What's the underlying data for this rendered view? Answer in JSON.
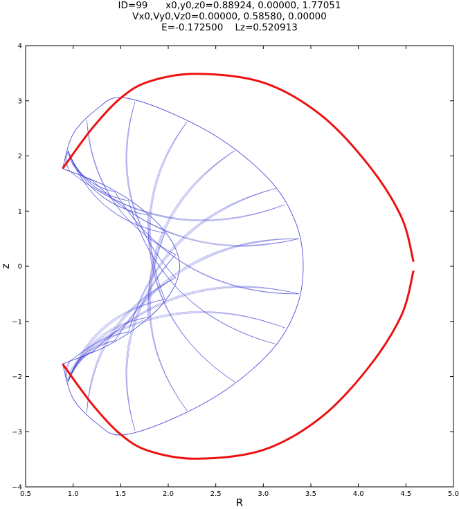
{
  "title_lines": [
    "ID=99      x0,y0,z0=0.88924, 0.00000, 1.77051",
    "Vx0,Vy0,Vz0=0.00000, 0.58580, 0.00000",
    "E=-0.172500    Lz=0.520913"
  ],
  "chart_data": {
    "type": "line",
    "xlabel": "R",
    "ylabel": "z",
    "xlim": [
      0.5,
      5.0
    ],
    "ylim": [
      -4,
      4
    ],
    "xticks": [
      "0.5",
      "1.0",
      "1.5",
      "2.0",
      "2.5",
      "3.0",
      "3.5",
      "4.0",
      "4.5",
      "5.0"
    ],
    "yticks": [
      "−4",
      "−3",
      "−2",
      "−1",
      "0",
      "1",
      "2",
      "3",
      "4"
    ],
    "grid": false,
    "series": [
      {
        "role": "zero-velocity curve",
        "color": "#ee1111",
        "points": [
          [
            0.889,
            1.771
          ],
          [
            1.2,
            2.5
          ],
          [
            1.5,
            3.05
          ],
          [
            1.8,
            3.35
          ],
          [
            2.3,
            3.49
          ],
          [
            3.0,
            3.33
          ],
          [
            3.6,
            2.75
          ],
          [
            4.1,
            1.85
          ],
          [
            4.45,
            0.9
          ],
          [
            4.58,
            0.08
          ],
          [
            4.58,
            -0.08
          ],
          [
            4.45,
            -0.9
          ],
          [
            4.1,
            -1.85
          ],
          [
            3.6,
            -2.75
          ],
          [
            3.0,
            -3.33
          ],
          [
            2.3,
            -3.49
          ],
          [
            1.8,
            -3.35
          ],
          [
            1.5,
            -3.05
          ],
          [
            1.2,
            -2.5
          ],
          [
            0.889,
            -1.771
          ]
        ]
      },
      {
        "role": "orbit trajectory",
        "color": "#3b3bd6",
        "inner_edge": [
          [
            0.889,
            1.771
          ],
          [
            1.35,
            1.45
          ],
          [
            1.75,
            1.0
          ],
          [
            2.02,
            0.5
          ],
          [
            2.12,
            0.0
          ],
          [
            2.02,
            -0.5
          ],
          [
            1.75,
            -1.0
          ],
          [
            1.35,
            -1.45
          ],
          [
            0.889,
            -1.771
          ]
        ],
        "outer_edge": [
          [
            0.889,
            1.771
          ],
          [
            1.0,
            2.4
          ],
          [
            1.25,
            2.85
          ],
          [
            1.5,
            3.06
          ],
          [
            2.0,
            2.8
          ],
          [
            2.6,
            2.25
          ],
          [
            3.1,
            1.5
          ],
          [
            3.35,
            0.75
          ],
          [
            3.42,
            0.0
          ],
          [
            3.35,
            -0.75
          ],
          [
            3.1,
            -1.5
          ],
          [
            2.6,
            -2.25
          ],
          [
            2.0,
            -2.8
          ],
          [
            1.5,
            -3.06
          ],
          [
            1.25,
            -2.85
          ],
          [
            1.0,
            -2.4
          ],
          [
            0.889,
            -1.771
          ]
        ]
      }
    ]
  }
}
